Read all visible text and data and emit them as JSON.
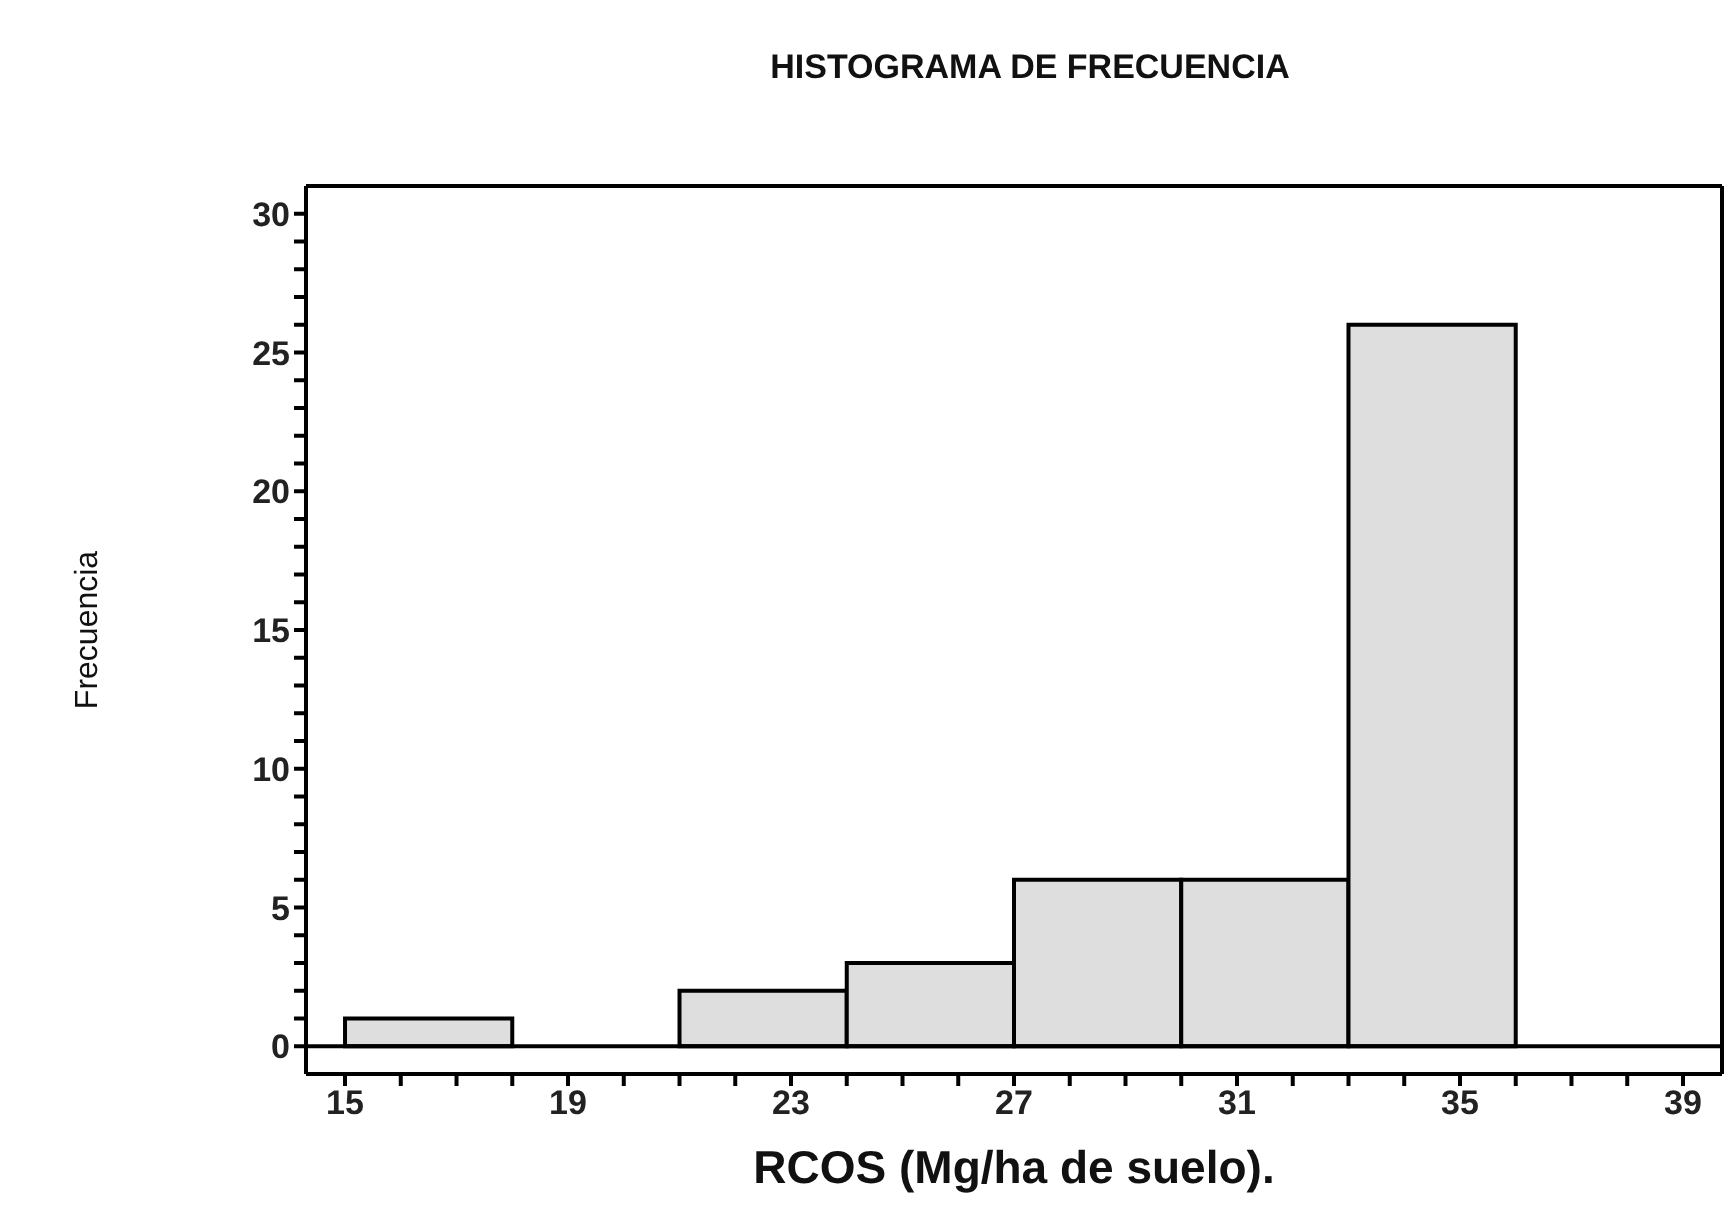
{
  "chart_data": {
    "type": "histogram",
    "title": "HISTOGRAMA DE FRECUENCIA",
    "xlabel": "RCOS (Mg/ha de suelo).",
    "ylabel": "Frecuencia",
    "bins": [
      15,
      18,
      21,
      24,
      27,
      30,
      33,
      36
    ],
    "values": [
      1,
      0,
      2,
      3,
      6,
      6,
      26
    ],
    "color": "#dedede",
    "xlim": [
      14.3,
      39.7
    ],
    "xticks": [
      15,
      {
        "value": 16,
        "label": null
      },
      {
        "value": 17,
        "label": null
      },
      {
        "value": 18,
        "label": null
      },
      19,
      {
        "value": 20,
        "label": null
      },
      {
        "value": 21,
        "label": null
      },
      {
        "value": 22,
        "label": null
      },
      23,
      {
        "value": 24,
        "label": null
      },
      {
        "value": 25,
        "label": null
      },
      {
        "value": 26,
        "label": null
      },
      27,
      {
        "value": 28,
        "label": null
      },
      {
        "value": 29,
        "label": null
      },
      {
        "value": 30,
        "label": null
      },
      31,
      {
        "value": 32,
        "label": null
      },
      {
        "value": 33,
        "label": null
      },
      {
        "value": 34,
        "label": null
      },
      35,
      {
        "value": 36,
        "label": null
      },
      {
        "value": 37,
        "label": null
      },
      {
        "value": 38,
        "label": null
      },
      39
    ],
    "ylim": [
      -1,
      31
    ],
    "yticks": [
      0,
      {
        "value": 1,
        "label": null
      },
      {
        "value": 2,
        "label": null
      },
      {
        "value": 3,
        "label": null
      },
      {
        "value": 4,
        "label": null
      },
      5,
      {
        "value": 6,
        "label": null
      },
      {
        "value": 7,
        "label": null
      },
      {
        "value": 8,
        "label": null
      },
      {
        "value": 9,
        "label": null
      },
      10,
      {
        "value": 11,
        "label": null
      },
      {
        "value": 12,
        "label": null
      },
      {
        "value": 13,
        "label": null
      },
      {
        "value": 14,
        "label": null
      },
      15,
      {
        "value": 16,
        "label": null
      },
      {
        "value": 17,
        "label": null
      },
      {
        "value": 18,
        "label": null
      },
      {
        "value": 19,
        "label": null
      },
      20,
      {
        "value": 21,
        "label": null
      },
      {
        "value": 22,
        "label": null
      },
      {
        "value": 23,
        "label": null
      },
      {
        "value": 24,
        "label": null
      },
      25,
      {
        "value": 26,
        "label": null
      },
      {
        "value": 27,
        "label": null
      },
      {
        "value": 28,
        "label": null
      },
      {
        "value": 29,
        "label": null
      },
      30
    ],
    "ref_lines": [
      {
        "axis": "y",
        "value": 0,
        "color": "#000000"
      }
    ]
  }
}
